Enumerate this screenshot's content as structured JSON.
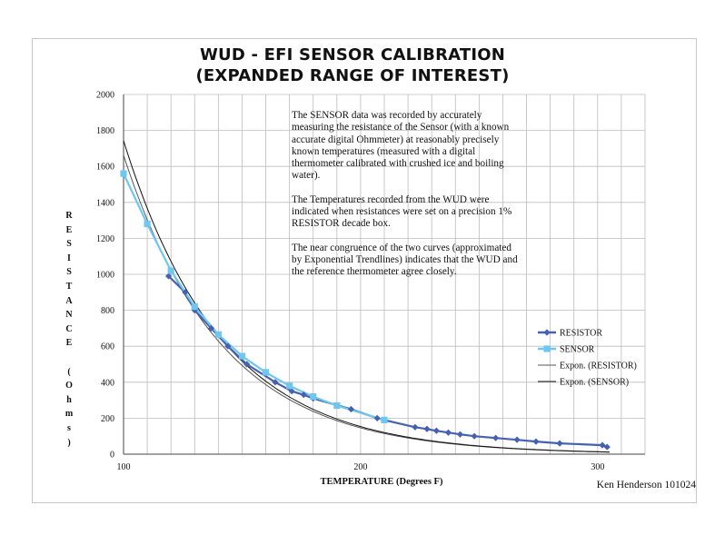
{
  "chart_data": {
    "type": "scatter",
    "title": "WUD - EFI SENSOR CALIBRATION",
    "subtitle": "(EXPANDED RANGE OF INTEREST)",
    "xlabel": "TEMPERATURE (Degrees F)",
    "ylabel": "RESISTANCE (Ohms)",
    "xlim": [
      100,
      320
    ],
    "ylim": [
      0,
      2000
    ],
    "x_ticks": [
      100,
      200,
      300
    ],
    "y_ticks": [
      0,
      200,
      400,
      600,
      800,
      1000,
      1200,
      1400,
      1600,
      1800,
      2000
    ],
    "grid": true,
    "legend_position": "right",
    "series": [
      {
        "name": "RESISTOR",
        "color": "#4561b0",
        "marker": "diamond",
        "line": true,
        "points": [
          [
            119,
            990
          ],
          [
            126,
            900
          ],
          [
            130,
            800
          ],
          [
            137,
            700
          ],
          [
            144,
            600
          ],
          [
            152,
            500
          ],
          [
            164,
            400
          ],
          [
            171,
            350
          ],
          [
            176,
            330
          ],
          [
            180,
            310
          ],
          [
            196,
            250
          ],
          [
            207,
            200
          ],
          [
            210,
            190
          ],
          [
            223,
            150
          ],
          [
            228,
            140
          ],
          [
            232,
            130
          ],
          [
            237,
            120
          ],
          [
            242,
            110
          ],
          [
            248,
            100
          ],
          [
            257,
            90
          ],
          [
            266,
            80
          ],
          [
            274,
            70
          ],
          [
            284,
            60
          ],
          [
            302,
            50
          ],
          [
            304,
            40
          ]
        ]
      },
      {
        "name": "SENSOR",
        "color": "#6ec7ef",
        "marker": "square",
        "line": true,
        "points": [
          [
            100,
            1560
          ],
          [
            110,
            1280
          ],
          [
            120,
            1020
          ],
          [
            130,
            820
          ],
          [
            140,
            665
          ],
          [
            150,
            545
          ],
          [
            160,
            455
          ],
          [
            170,
            380
          ],
          [
            180,
            320
          ],
          [
            190,
            270
          ],
          [
            210,
            190
          ]
        ]
      },
      {
        "name": "Expon. (RESISTOR)",
        "color": "#555555",
        "type": "trendline",
        "a": 18880,
        "b": -0.0243
      },
      {
        "name": "Expon. (SENSOR)",
        "color": "#111111",
        "type": "trendline",
        "a": 19800,
        "b": -0.0243
      }
    ],
    "annotation": [
      "The SENSOR data was  recorded by accurately measuring the resistance of the Sensor (with a known accurate digital Ohmmeter) at reasonably precisely known temperatures (measured with a digital thermometer calibrated with crushed ice and boiling water).",
      "The Temperatures recorded from the WUD were indicated when resistances were set on a precision 1% RESISTOR decade box.",
      "The near congruence of the two curves (approximated by Exponential Trendlines) indicates that the WUD and the reference thermometer agree closely."
    ]
  },
  "ylabel_letters": [
    "R",
    "E",
    "S",
    "I",
    "S",
    "T",
    "A",
    "N",
    "C",
    "E",
    "",
    "(",
    "O",
    "h",
    "m",
    "s",
    ")"
  ],
  "credit": "Ken Henderson 101024"
}
